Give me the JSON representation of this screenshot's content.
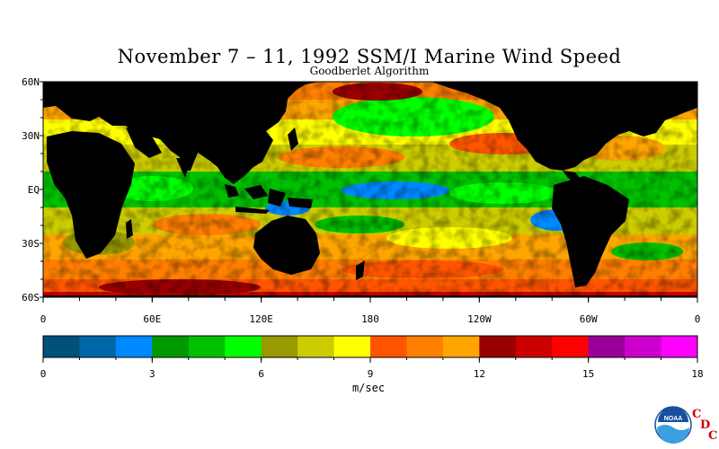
{
  "title": "November 7 – 11, 1992 SSM/I Marine Wind Speed",
  "subtitle": "Goodberlet Algorithm",
  "map": {
    "lat_labels": [
      "60N",
      "30N",
      "EQ",
      "30S",
      "60S"
    ],
    "lon_labels": [
      "0",
      "60E",
      "120E",
      "180",
      "120W",
      "60W",
      "0"
    ],
    "land_color": "#000000",
    "frame_color": "#000000"
  },
  "colorbar": {
    "label": "m/sec",
    "tick_labels": [
      "0",
      "3",
      "6",
      "9",
      "12",
      "15",
      "18"
    ],
    "range": [
      0,
      18
    ],
    "colors": [
      "#00507a",
      "#0066aa",
      "#0088ff",
      "#009900",
      "#00c000",
      "#00ff00",
      "#999900",
      "#cccc00",
      "#ffff00",
      "#ff5500",
      "#ff7f00",
      "#ffa500",
      "#990000",
      "#cc0000",
      "#ff0000",
      "#990099",
      "#cc00cc",
      "#ff00ff"
    ]
  },
  "logo": {
    "text": "NOAA",
    "letters": [
      "C",
      "D",
      "C"
    ]
  }
}
